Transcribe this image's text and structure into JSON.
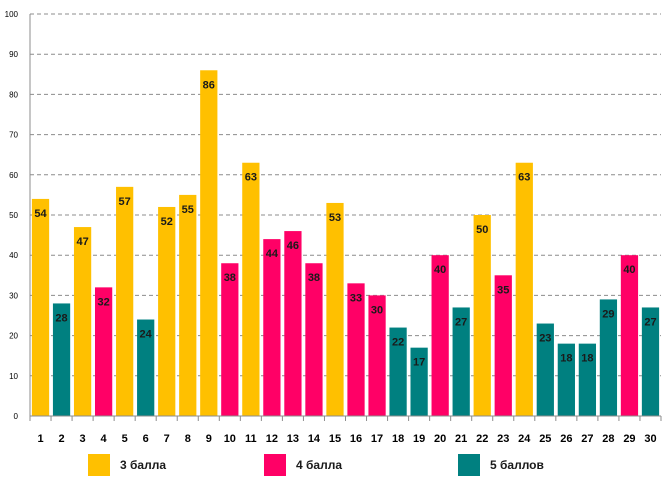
{
  "chart_data": {
    "type": "bar",
    "title": "",
    "xlabel": "",
    "ylabel": "",
    "ylim": [
      0,
      100
    ],
    "yticks": [
      0,
      10,
      20,
      30,
      40,
      50,
      60,
      70,
      80,
      90,
      100
    ],
    "categories": [
      "1",
      "2",
      "3",
      "4",
      "5",
      "6",
      "7",
      "8",
      "9",
      "10",
      "11",
      "12",
      "13",
      "14",
      "15",
      "16",
      "17",
      "18",
      "19",
      "20",
      "21",
      "22",
      "23",
      "24",
      "25",
      "26",
      "27",
      "28",
      "29",
      "30"
    ],
    "values": [
      54,
      28,
      47,
      32,
      57,
      24,
      52,
      55,
      86,
      38,
      63,
      44,
      46,
      38,
      53,
      33,
      30,
      22,
      17,
      40,
      27,
      50,
      35,
      63,
      23,
      18,
      18,
      29,
      40,
      27
    ],
    "groups": [
      "3",
      "5",
      "3",
      "4",
      "3",
      "5",
      "3",
      "3",
      "3",
      "4",
      "3",
      "4",
      "4",
      "4",
      "3",
      "4",
      "4",
      "5",
      "5",
      "4",
      "5",
      "3",
      "4",
      "3",
      "5",
      "5",
      "5",
      "5",
      "4",
      "5"
    ],
    "legend": [
      {
        "key": "3",
        "label": "3 балла",
        "color": "#FFC000"
      },
      {
        "key": "4",
        "label": "4 балла",
        "color": "#FF0066"
      },
      {
        "key": "5",
        "label": "5 баллов",
        "color": "#008080"
      }
    ],
    "grid": true
  }
}
